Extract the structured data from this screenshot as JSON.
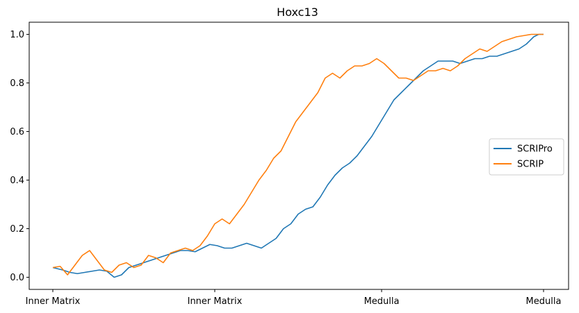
{
  "chart_data": {
    "type": "line",
    "title": "Hoxc13",
    "xlabel": "",
    "ylabel": "",
    "x_range": [
      0,
      1
    ],
    "ylim": [
      -0.05,
      1.05
    ],
    "x_ticks": [
      {
        "x": 0.0,
        "label": "Inner Matrix"
      },
      {
        "x": 0.33,
        "label": "Inner Matrix"
      },
      {
        "x": 0.67,
        "label": "Medulla"
      },
      {
        "x": 1.0,
        "label": "Medulla"
      }
    ],
    "y_ticks": [
      0.0,
      0.2,
      0.4,
      0.6,
      0.8,
      1.0
    ],
    "y_tick_labels": [
      "0.0",
      "0.2",
      "0.4",
      "0.6",
      "0.8",
      "1.0"
    ],
    "grid": false,
    "legend_position": "center-right",
    "series": [
      {
        "name": "SCRIPro",
        "color": "#1f77b4",
        "x": [
          0.0,
          0.02,
          0.035,
          0.05,
          0.065,
          0.08,
          0.095,
          0.11,
          0.125,
          0.14,
          0.155,
          0.17,
          0.185,
          0.2,
          0.215,
          0.23,
          0.245,
          0.26,
          0.275,
          0.29,
          0.305,
          0.32,
          0.335,
          0.35,
          0.365,
          0.38,
          0.395,
          0.41,
          0.425,
          0.44,
          0.455,
          0.47,
          0.485,
          0.5,
          0.515,
          0.53,
          0.545,
          0.56,
          0.575,
          0.59,
          0.605,
          0.62,
          0.635,
          0.65,
          0.665,
          0.68,
          0.695,
          0.71,
          0.725,
          0.74,
          0.755,
          0.77,
          0.785,
          0.8,
          0.815,
          0.83,
          0.845,
          0.86,
          0.875,
          0.89,
          0.905,
          0.92,
          0.935,
          0.95,
          0.965,
          0.98,
          0.99,
          1.0
        ],
        "y": [
          0.04,
          0.03,
          0.02,
          0.015,
          0.02,
          0.025,
          0.03,
          0.025,
          0.0,
          0.01,
          0.04,
          0.05,
          0.06,
          0.07,
          0.08,
          0.09,
          0.1,
          0.11,
          0.11,
          0.105,
          0.12,
          0.135,
          0.13,
          0.12,
          0.12,
          0.13,
          0.14,
          0.13,
          0.12,
          0.14,
          0.16,
          0.2,
          0.22,
          0.26,
          0.28,
          0.29,
          0.33,
          0.38,
          0.42,
          0.45,
          0.47,
          0.5,
          0.54,
          0.58,
          0.63,
          0.68,
          0.73,
          0.76,
          0.79,
          0.82,
          0.85,
          0.87,
          0.89,
          0.89,
          0.89,
          0.88,
          0.89,
          0.9,
          0.9,
          0.91,
          0.91,
          0.92,
          0.93,
          0.94,
          0.96,
          0.99,
          1.0,
          1.0
        ]
      },
      {
        "name": "SCRIP",
        "color": "#ff7f0e",
        "x": [
          0.0,
          0.015,
          0.03,
          0.045,
          0.06,
          0.075,
          0.09,
          0.105,
          0.12,
          0.135,
          0.15,
          0.165,
          0.18,
          0.195,
          0.21,
          0.225,
          0.24,
          0.255,
          0.27,
          0.285,
          0.3,
          0.315,
          0.33,
          0.345,
          0.36,
          0.375,
          0.39,
          0.405,
          0.42,
          0.435,
          0.45,
          0.465,
          0.48,
          0.495,
          0.51,
          0.525,
          0.54,
          0.555,
          0.57,
          0.585,
          0.6,
          0.615,
          0.63,
          0.645,
          0.66,
          0.675,
          0.69,
          0.705,
          0.72,
          0.735,
          0.75,
          0.765,
          0.78,
          0.795,
          0.81,
          0.825,
          0.84,
          0.855,
          0.87,
          0.885,
          0.9,
          0.915,
          0.93,
          0.945,
          0.96,
          0.975,
          0.99,
          1.0
        ],
        "y": [
          0.04,
          0.045,
          0.01,
          0.05,
          0.09,
          0.11,
          0.07,
          0.03,
          0.02,
          0.05,
          0.06,
          0.04,
          0.05,
          0.09,
          0.08,
          0.06,
          0.1,
          0.11,
          0.12,
          0.11,
          0.13,
          0.17,
          0.22,
          0.24,
          0.22,
          0.26,
          0.3,
          0.35,
          0.4,
          0.44,
          0.49,
          0.52,
          0.58,
          0.64,
          0.68,
          0.72,
          0.76,
          0.82,
          0.84,
          0.82,
          0.85,
          0.87,
          0.87,
          0.88,
          0.9,
          0.88,
          0.85,
          0.82,
          0.82,
          0.81,
          0.83,
          0.85,
          0.85,
          0.86,
          0.85,
          0.87,
          0.9,
          0.92,
          0.94,
          0.93,
          0.95,
          0.97,
          0.98,
          0.99,
          0.995,
          1.0,
          1.0,
          1.0
        ]
      }
    ]
  }
}
